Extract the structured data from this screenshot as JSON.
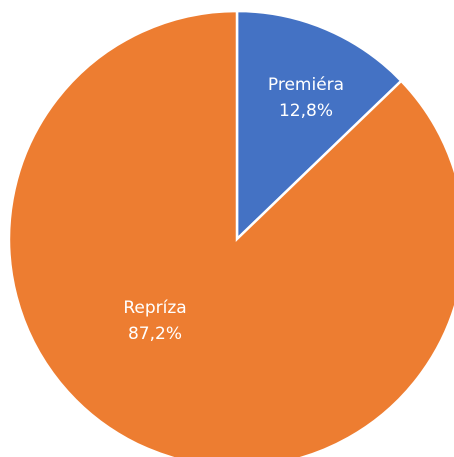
{
  "chart_data": {
    "type": "pie",
    "categories": [
      "Premiéra",
      "Repríza"
    ],
    "values": [
      12.8,
      87.2
    ],
    "value_labels": [
      "12,8%",
      "87,2%"
    ],
    "colors": [
      "#4472c4",
      "#ed7d31"
    ]
  }
}
